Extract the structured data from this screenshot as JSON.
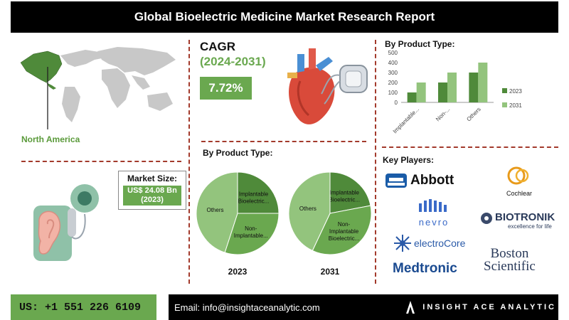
{
  "header": {
    "title": "Global Bioelectric Medicine Market  Research Report"
  },
  "region": {
    "label": "North America"
  },
  "cagr": {
    "label": "CAGR",
    "period": "(2024-2031)",
    "value": "7.72%"
  },
  "market_size": {
    "title": "Market Size:",
    "value": "US$ 24.08 Bn",
    "year": "(2023)"
  },
  "bar_section": {
    "title": "By Product Type:"
  },
  "pie_section": {
    "title": "By Product Type:"
  },
  "key_players": {
    "title": "Key Players:",
    "logos": [
      "Abbott",
      "Cochlear",
      "nevro",
      "BIOTRONIK",
      "excellence for life",
      "electroCore",
      "Medtronic",
      "Boston",
      "Scientific"
    ]
  },
  "footer": {
    "phone": "US: +1 551 226 6109",
    "email": "Email: info@insightaceanalytic.com",
    "brand": "INSIGHT ACE ANALYTIC"
  },
  "colors": {
    "accent_green": "#6aa84f",
    "dark_green": "#4f8a3a",
    "light_green": "#93c47d",
    "dash_red": "#a33a2c"
  },
  "chart_data": [
    {
      "type": "bar",
      "title": "By Product Type:",
      "categories": [
        "Implantable...",
        "Non-...",
        "Others"
      ],
      "series": [
        {
          "name": "2023",
          "values": [
            100,
            200,
            300
          ]
        },
        {
          "name": "2031",
          "values": [
            200,
            300,
            400
          ]
        }
      ],
      "ylim": [
        0,
        500
      ],
      "yticks": [
        "0",
        "100",
        "200",
        "300",
        "400",
        "500"
      ],
      "legend": "right",
      "grid": false
    },
    {
      "type": "pie",
      "title": "2023",
      "labels": [
        "Implantable Bioelectric...",
        "Non-Implantable...",
        "Others"
      ],
      "label_text": [
        [
          "Implantable",
          "Bioelectric..."
        ],
        [
          "Non-",
          "Implantable..."
        ],
        [
          "Others"
        ]
      ],
      "values": [
        25,
        30,
        45
      ]
    },
    {
      "type": "pie",
      "title": "2031",
      "labels": [
        "Implantable Bioelectric...",
        "Non-Implantable Bioelectric...",
        "Others"
      ],
      "label_text": [
        [
          "Implantable",
          "Bioelectric..."
        ],
        [
          "Non-",
          "Implantable",
          "Bioelectric..."
        ],
        [
          "Others"
        ]
      ],
      "values": [
        22,
        35,
        43
      ]
    }
  ]
}
